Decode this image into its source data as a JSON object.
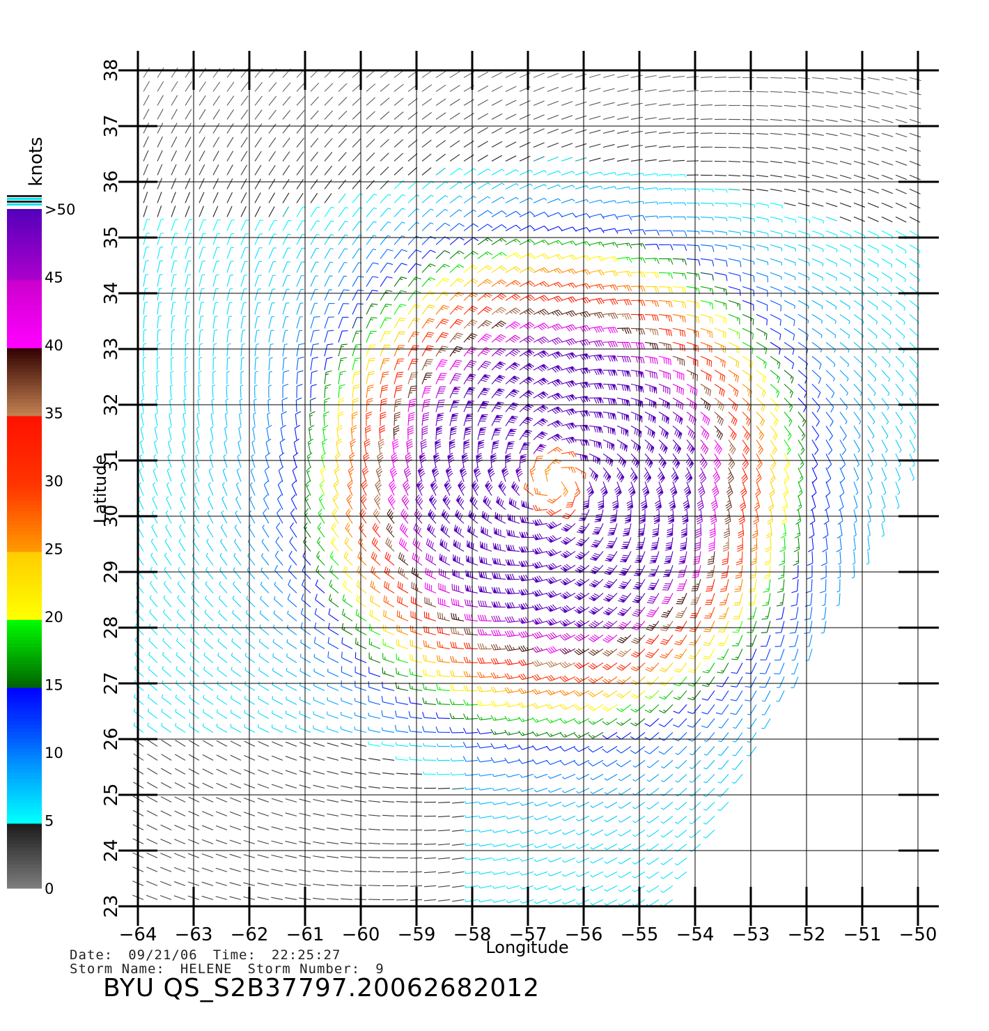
{
  "chart_data": {
    "type": "wind-barb",
    "xlabel": "Longitude",
    "ylabel": "Latitude",
    "xlim": [
      -64,
      -50
    ],
    "ylim": [
      23,
      38
    ],
    "x_ticks": [
      -64,
      -63,
      -62,
      -61,
      -60,
      -59,
      -58,
      -57,
      -56,
      -55,
      -54,
      -53,
      -52,
      -51,
      -50
    ],
    "y_ticks": [
      23,
      24,
      25,
      26,
      27,
      28,
      29,
      30,
      31,
      32,
      33,
      34,
      35,
      36,
      37,
      38
    ],
    "grid": true,
    "storm_center": {
      "lon": -56.5,
      "lat": 30.6
    },
    "colorbar": {
      "unit": "knots",
      "labels": [
        "0",
        "5",
        "10",
        "15",
        "20",
        "25",
        "30",
        "35",
        "40",
        "45",
        ">50"
      ],
      "bands": [
        {
          "range": [
            0,
            5
          ],
          "colors": [
            "#808080",
            "#202020"
          ]
        },
        {
          "range": [
            5,
            10
          ],
          "colors": [
            "#00ffff",
            "#00aaff"
          ]
        },
        {
          "range": [
            10,
            15
          ],
          "colors": [
            "#0077ff",
            "#0000ff"
          ]
        },
        {
          "range": [
            15,
            20
          ],
          "colors": [
            "#007700",
            "#00ff00"
          ]
        },
        {
          "range": [
            20,
            25
          ],
          "colors": [
            "#ffff00",
            "#ffcc00"
          ]
        },
        {
          "range": [
            25,
            30
          ],
          "colors": [
            "#ff8800",
            "#ff3300"
          ]
        },
        {
          "range": [
            30,
            35
          ],
          "colors": [
            "#ff3300",
            "#ff0000"
          ]
        },
        {
          "range": [
            35,
            40
          ],
          "colors": [
            "#c08050",
            "#300000"
          ]
        },
        {
          "range": [
            40,
            45
          ],
          "colors": [
            "#ff00ff",
            "#cc00cc"
          ]
        },
        {
          "range": [
            45,
            50
          ],
          "colors": [
            "#aa00cc",
            "#5500bb"
          ]
        }
      ]
    }
  },
  "info": {
    "date_label": "Date:",
    "date": "09/21/06",
    "time_label": "Time:",
    "time": "22:25:27",
    "storm_name_label": "Storm Name:",
    "storm_name": "HELENE",
    "storm_number_label": "Storm Number:",
    "storm_number": "9",
    "product_id": "BYU QS_S2B37797.20062682012"
  }
}
